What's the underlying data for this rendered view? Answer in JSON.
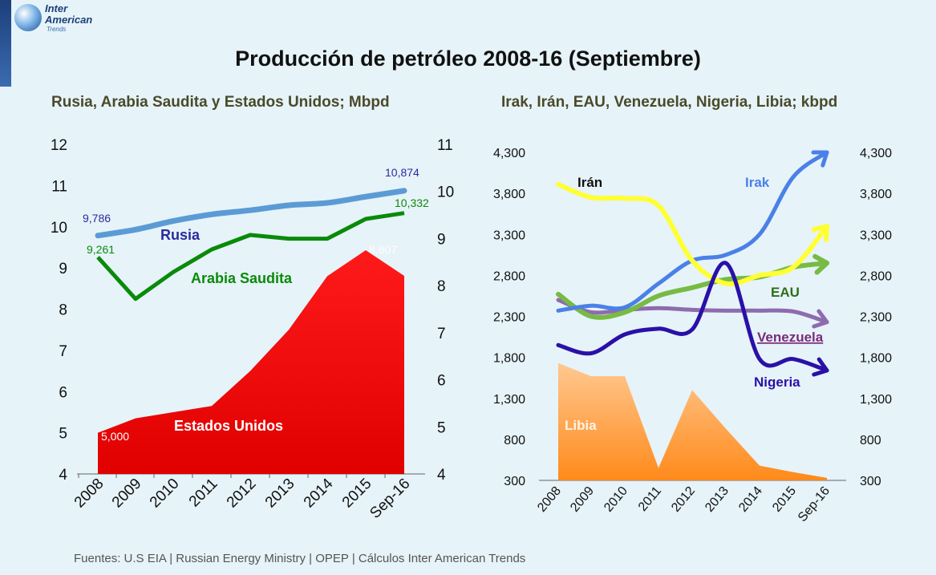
{
  "logo": {
    "line1": "Inter",
    "line2": "American",
    "line3": "Trends"
  },
  "title": "Producción de petróleo 2008-16 (Septiembre)",
  "source": "Fuentes: U.S EIA | Russian Energy Ministry  | OPEP | Cálculos Inter American Trends",
  "chart_data": [
    {
      "type": "line",
      "title": "Rusia, Arabia Saudita y Estados Unidos; Mbpd",
      "categories": [
        "2008",
        "2009",
        "2010",
        "2011",
        "2012",
        "2013",
        "2014",
        "2015",
        "Sep-16"
      ],
      "ylim_left": [
        4,
        12
      ],
      "yticks_left": [
        "4",
        "5",
        "6",
        "7",
        "8",
        "9",
        "10",
        "11",
        "12"
      ],
      "ylim_right": [
        4,
        11
      ],
      "yticks_right": [
        "4",
        "5",
        "6",
        "7",
        "8",
        "9",
        "10",
        "11"
      ],
      "series": [
        {
          "name": "Estados Unidos",
          "type": "area",
          "color": "#ff0000",
          "values": [
            5.0,
            5.35,
            5.5,
            5.65,
            6.5,
            7.5,
            8.8,
            9.43,
            8.807
          ]
        },
        {
          "name": "Rusia",
          "type": "line",
          "color": "#5b9bd5",
          "values": [
            9.786,
            9.93,
            10.14,
            10.3,
            10.4,
            10.52,
            10.58,
            10.73,
            10.874
          ]
        },
        {
          "name": "Arabia Saudita",
          "type": "line",
          "color": "#0a8a0a",
          "values": [
            9.261,
            8.25,
            8.9,
            9.45,
            9.8,
            9.71,
            9.71,
            10.19,
            10.332
          ]
        }
      ],
      "data_labels": {
        "rusia_first": "9,786",
        "rusia_last": "10,874",
        "arabia_first": "9,261",
        "arabia_last": "10,332",
        "eeuu_first": "5,000",
        "eeuu_last": "8,807"
      }
    },
    {
      "type": "line",
      "title": "Irak, Irán, EAU, Venezuela, Nigeria, Libia; kbpd",
      "categories": [
        "2008",
        "2009",
        "2010",
        "2011",
        "2012",
        "2013",
        "2014",
        "2015",
        "Sep-16"
      ],
      "ylim": [
        300,
        4300
      ],
      "yticks": [
        "300",
        "800",
        "1,300",
        "1,800",
        "2,300",
        "2,800",
        "3,300",
        "3,800",
        "4,300"
      ],
      "series": [
        {
          "name": "Libia",
          "type": "area",
          "color": "#ff9933",
          "values": [
            1730,
            1570,
            1570,
            450,
            1400,
            930,
            480,
            400,
            330
          ]
        },
        {
          "name": "Irán",
          "type": "line",
          "color": "#ffff33",
          "values": [
            3910,
            3750,
            3740,
            3650,
            2980,
            2700,
            2800,
            2900,
            3400
          ]
        },
        {
          "name": "Irak",
          "type": "line",
          "color": "#4a80e8",
          "values": [
            2370,
            2430,
            2410,
            2700,
            2980,
            3050,
            3300,
            4000,
            4300
          ]
        },
        {
          "name": "EAU",
          "type": "line",
          "color": "#77bb44",
          "values": [
            2570,
            2300,
            2350,
            2550,
            2650,
            2750,
            2780,
            2900,
            2950
          ]
        },
        {
          "name": "Venezuela",
          "type": "line",
          "color": "#8e6bae",
          "values": [
            2500,
            2350,
            2380,
            2400,
            2380,
            2370,
            2370,
            2360,
            2230
          ]
        },
        {
          "name": "Nigeria",
          "type": "line",
          "color": "#2a10a8",
          "values": [
            1950,
            1850,
            2080,
            2150,
            2140,
            2950,
            1780,
            1780,
            1640
          ]
        }
      ]
    }
  ]
}
